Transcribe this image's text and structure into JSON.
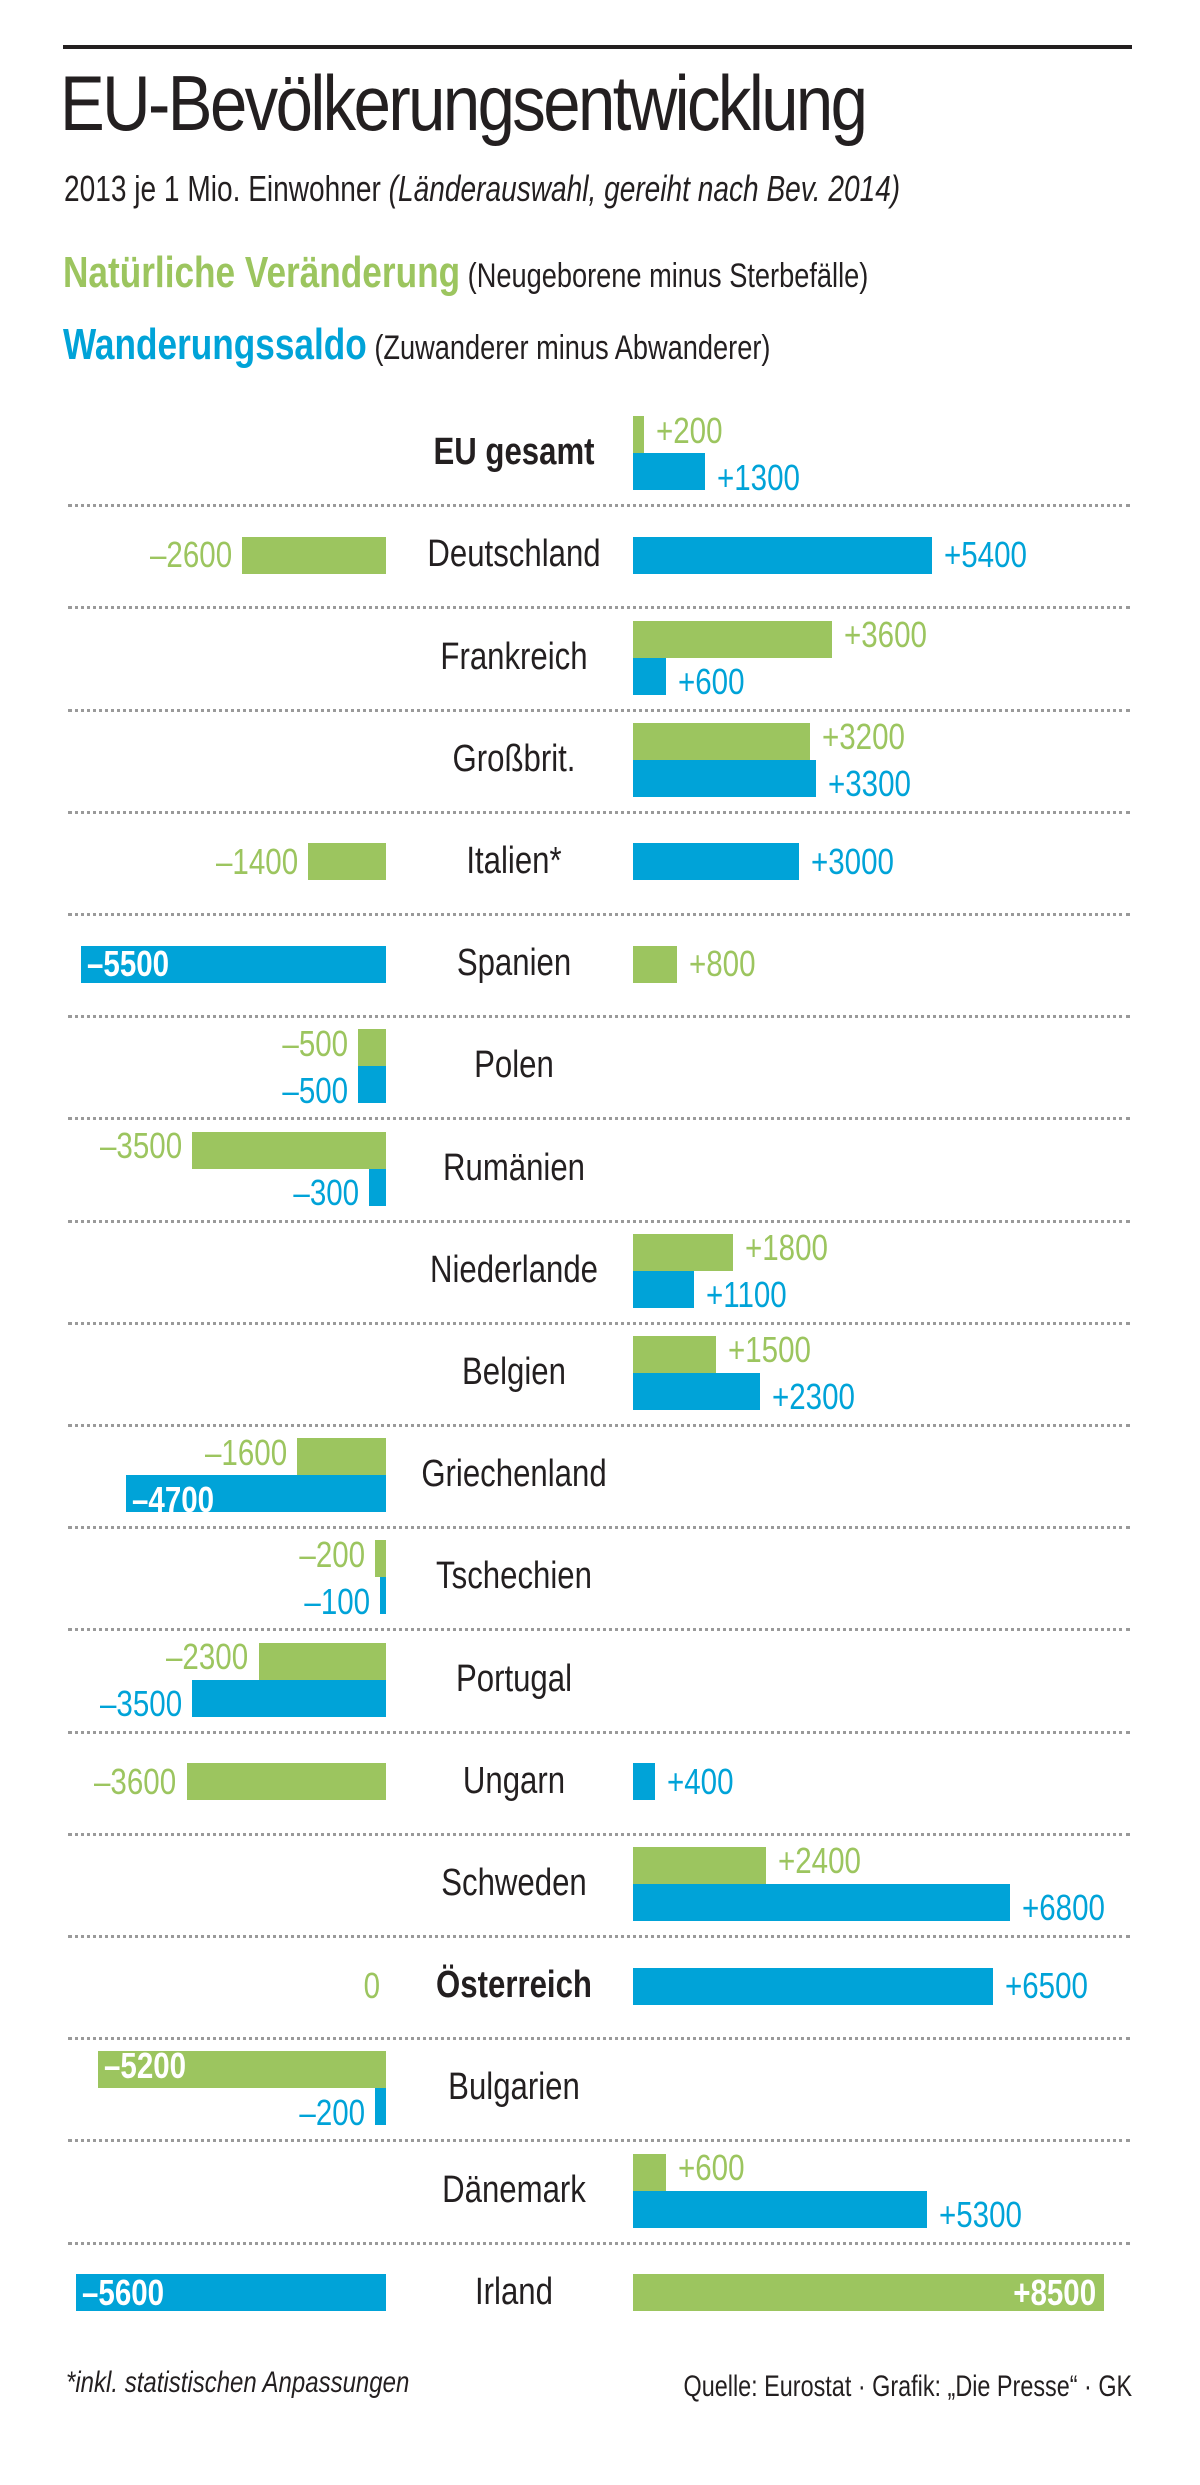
{
  "header": {
    "title": "EU-Bevölkerungsentwicklung",
    "subtitle_main": "2013 je 1 Mio. Einwohner ",
    "subtitle_italic": "(Länderauswahl, gereiht nach Bev. 2014)"
  },
  "legend": {
    "natural": {
      "label": "Natürliche Veränderung",
      "desc": " (Neugeborene minus Sterbefälle)",
      "color": "#9cc55f"
    },
    "migration": {
      "label": "Wanderungssaldo",
      "desc": " (Zuwanderer minus Abwanderer)",
      "color": "#00a3d8"
    }
  },
  "footer": {
    "footnote": "*inkl.  statistischen Anpassungen",
    "source": "Quelle: Eurostat · Grafik: „Die Presse“ · GK"
  },
  "chart_data": {
    "type": "bar",
    "orientation": "horizontal-diverging",
    "title": "EU-Bevölkerungsentwicklung",
    "subtitle": "2013 je 1 Mio. Einwohner (Länderauswahl, gereiht nach Bev. 2014)",
    "unit": "je 1 Mio. Einwohner",
    "xlim": [
      -5600,
      8500
    ],
    "grid": false,
    "legend_position": "top-left",
    "categories": [
      "EU gesamt",
      "Deutschland",
      "Frankreich",
      "Großbrit.",
      "Italien*",
      "Spanien",
      "Polen",
      "Rumänien",
      "Niederlande",
      "Belgien",
      "Griechenland",
      "Tschechien",
      "Portugal",
      "Ungarn",
      "Schweden",
      "Österreich",
      "Bulgarien",
      "Dänemark",
      "Irland"
    ],
    "bold_categories": [
      "EU gesamt",
      "Österreich"
    ],
    "series": [
      {
        "name": "Natürliche Veränderung",
        "color": "#9cc55f",
        "values": [
          200,
          -2600,
          3600,
          3200,
          -1400,
          800,
          -500,
          -3500,
          1800,
          1500,
          -1600,
          -200,
          -2300,
          -3600,
          2400,
          0,
          -5200,
          600,
          8500
        ],
        "labels": [
          "+200",
          "–2600",
          "+3600",
          "+3200",
          "–1400",
          "+800",
          "–500",
          "–3500",
          "+1800",
          "+1500",
          "–1600",
          "–200",
          "–2300",
          "–3600",
          "+2400",
          "0",
          "–5200",
          "+600",
          "+8500"
        ]
      },
      {
        "name": "Wanderungssaldo",
        "color": "#00a3d8",
        "values": [
          1300,
          5400,
          600,
          3300,
          3000,
          -5500,
          -500,
          -300,
          1100,
          2300,
          -4700,
          -100,
          -3500,
          400,
          6800,
          6500,
          -200,
          5300,
          -5600
        ],
        "labels": [
          "+1300",
          "+5400",
          "+600",
          "+3300",
          "+3000",
          "–5500",
          "–500",
          "–300",
          "+1100",
          "+2300",
          "–4700",
          "–100",
          "–3500",
          "+400",
          "+6800",
          "+6500",
          "–200",
          "+5300",
          "–5600"
        ]
      }
    ]
  }
}
